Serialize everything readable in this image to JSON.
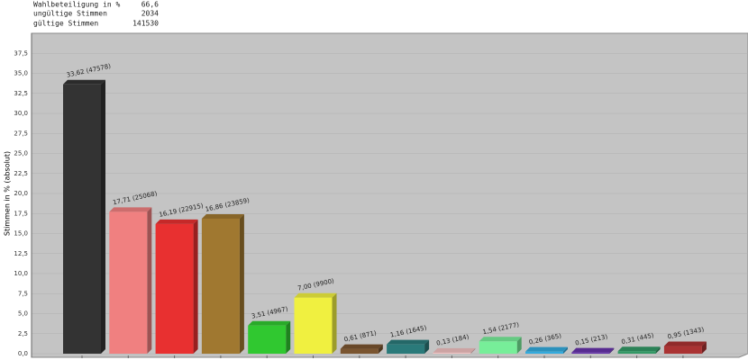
{
  "stats": [
    {
      "label": "Wahlbeteiligung in %",
      "value": "66,6"
    },
    {
      "label": "ungültige Stimmen",
      "value": "2034"
    },
    {
      "label": "gültige Stimmen",
      "value": "141530"
    }
  ],
  "chart_data": {
    "type": "bar3d",
    "y_label": "Stimmen in % (absolut)",
    "categories": [
      null,
      null,
      null,
      null,
      null,
      null,
      null,
      null,
      null,
      null,
      null,
      null,
      null,
      null
    ],
    "values": [
      33.62,
      17.71,
      16.19,
      16.86,
      3.51,
      7.0,
      0.61,
      1.16,
      0.13,
      1.54,
      0.26,
      0.15,
      0.31,
      0.95
    ],
    "value_labels": [
      "33,62 (47578)",
      "17,71 (25068)",
      "16,19 (22915)",
      "16,86 (23859)",
      "3,51 (4967)",
      "7,00 (9900)",
      "0,61 (871)",
      "1,16 (1645)",
      "0,13 (184)",
      "1,54 (2177)",
      "0,26 (365)",
      "0,15 (213)",
      "0,31 (445)",
      "0,95 (1343)"
    ],
    "colors": [
      "#333333",
      "#f08080",
      "#e83030",
      "#a07830",
      "#30c830",
      "#f0f040",
      "#7a5530",
      "#2a7a7a",
      "#f0c0c0",
      "#77ee99",
      "#33aadd",
      "#6633aa",
      "#339966",
      "#aa3333"
    ],
    "ylim": [
      0,
      40
    ],
    "yticks": [
      {
        "value": 0,
        "label": "0,0"
      },
      {
        "value": 2.5,
        "label": "2,5"
      },
      {
        "value": 5,
        "label": "5,0"
      },
      {
        "value": 7.5,
        "label": "7,5"
      },
      {
        "value": 10,
        "label": "10,0"
      },
      {
        "value": 12.5,
        "label": "12,5"
      },
      {
        "value": 15,
        "label": "15,0"
      },
      {
        "value": 17.5,
        "label": "17,5"
      },
      {
        "value": 20,
        "label": "20,0"
      },
      {
        "value": 22.5,
        "label": "22,5"
      },
      {
        "value": 25,
        "label": "25,0"
      },
      {
        "value": 27.5,
        "label": "27,5"
      },
      {
        "value": 30,
        "label": "30,0"
      },
      {
        "value": 32.5,
        "label": "32,5"
      },
      {
        "value": 35,
        "label": "35,0"
      },
      {
        "value": 37.5,
        "label": "37,5"
      }
    ],
    "grid": true
  }
}
